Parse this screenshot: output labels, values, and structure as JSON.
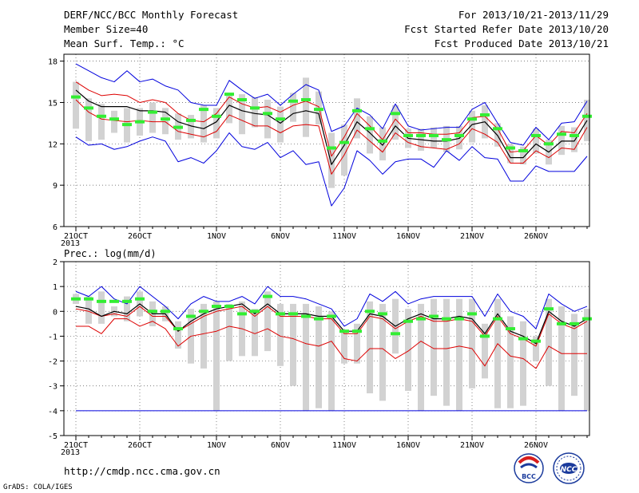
{
  "header": {
    "title": "DERF/NCC/BCC Monthly Forecast",
    "member_size": "Member Size=40",
    "variable": "Mean Surf. Temp.: °C",
    "period": "For 2013/10/21-2013/11/29",
    "fcst_started": "Fcst Started Refer Date 2013/10/20",
    "fcst_produced": "Fcst Produced Date 2013/10/21"
  },
  "footer": {
    "url": "http://cmdp.ncc.cma.gov.cn",
    "grads": "GrADS: COLA/IGES",
    "logo_bcc": "BCC",
    "logo_ncc": "NCC"
  },
  "colors": {
    "bar": "#d2d2d2",
    "obs": "#33ee33",
    "mean": "#000000",
    "spread": "#dd0000",
    "extreme": "#0000dd"
  },
  "chart_data": [
    {
      "type": "line",
      "name": "temperature",
      "ylabel": "",
      "ylim": [
        6,
        18.5
      ],
      "yticks": [
        6,
        9,
        12,
        15,
        18
      ],
      "grid": true,
      "xtick_labels": [
        {
          "day": 0,
          "label": "21OCT"
        },
        {
          "day": 5,
          "label": "26OCT"
        },
        {
          "day": 11,
          "label": "1NOV"
        },
        {
          "day": 16,
          "label": "6NOV"
        },
        {
          "day": 21,
          "label": "11NOV"
        },
        {
          "day": 26,
          "label": "16NOV"
        },
        {
          "day": 31,
          "label": "21NOV"
        },
        {
          "day": 36,
          "label": "26NOV"
        }
      ],
      "year_label": "2013",
      "series": {
        "max": [
          17.8,
          17.3,
          16.8,
          16.5,
          17.3,
          16.5,
          16.7,
          16.2,
          15.9,
          15.0,
          14.8,
          14.8,
          16.6,
          15.9,
          15.3,
          15.6,
          14.8,
          15.6,
          16.3,
          15.9,
          12.9,
          13.3,
          14.6,
          14.1,
          13.1,
          14.9,
          13.3,
          13.0,
          13.1,
          13.2,
          13.2,
          14.5,
          15.0,
          13.5,
          12.1,
          11.9,
          13.2,
          12.3,
          13.5,
          13.6,
          15.1
        ],
        "upper": [
          16.5,
          15.9,
          15.5,
          15.6,
          15.5,
          15.0,
          15.2,
          15.0,
          14.2,
          13.7,
          13.6,
          14.2,
          15.4,
          14.9,
          14.6,
          14.7,
          14.3,
          14.8,
          15.1,
          14.7,
          11.1,
          12.5,
          14.2,
          13.3,
          12.3,
          13.8,
          12.8,
          12.8,
          12.7,
          12.7,
          12.8,
          13.9,
          14.0,
          13.1,
          11.4,
          11.5,
          12.6,
          11.9,
          12.9,
          12.8,
          14.2
        ],
        "mean": [
          15.9,
          15.1,
          14.7,
          14.7,
          14.7,
          14.4,
          14.4,
          14.3,
          13.6,
          13.3,
          13.1,
          13.6,
          14.8,
          14.4,
          14.2,
          14.1,
          13.5,
          14.2,
          14.4,
          14.2,
          10.5,
          11.9,
          13.6,
          12.8,
          11.9,
          13.3,
          12.4,
          12.3,
          12.2,
          12.2,
          12.4,
          13.4,
          13.6,
          12.6,
          11.0,
          11.0,
          12.0,
          11.4,
          12.2,
          12.2,
          13.7
        ],
        "lower": [
          15.2,
          14.3,
          13.8,
          13.7,
          13.6,
          13.7,
          13.6,
          13.6,
          12.9,
          12.7,
          12.5,
          12.9,
          14.1,
          13.7,
          13.3,
          13.3,
          12.8,
          13.3,
          13.4,
          13.3,
          9.8,
          11.2,
          13.0,
          12.2,
          11.4,
          12.8,
          12.1,
          11.8,
          11.7,
          11.6,
          12.0,
          13.1,
          12.7,
          12.1,
          10.6,
          10.6,
          11.5,
          11.0,
          11.7,
          11.6,
          13.2
        ],
        "min": [
          12.5,
          11.9,
          12.0,
          11.6,
          11.8,
          12.2,
          12.5,
          12.2,
          10.7,
          11.0,
          10.6,
          11.5,
          12.8,
          11.8,
          11.6,
          12.1,
          11.0,
          11.5,
          10.5,
          10.7,
          7.5,
          8.8,
          11.5,
          10.8,
          9.8,
          10.7,
          10.9,
          10.9,
          10.3,
          11.5,
          10.8,
          11.8,
          11.0,
          10.9,
          9.3,
          9.3,
          10.4,
          10.0,
          10.0,
          10.0,
          11.1
        ],
        "obs": [
          15.4,
          14.6,
          14.0,
          13.8,
          13.4,
          13.6,
          14.3,
          13.8,
          13.2,
          13.7,
          14.5,
          14.0,
          15.6,
          15.2,
          14.6,
          14.2,
          13.8,
          15.1,
          15.2,
          14.5,
          11.7,
          12.1,
          14.4,
          13.1,
          12.2,
          14.2,
          12.6,
          12.6,
          12.6,
          12.3,
          12.6,
          13.8,
          14.1,
          13.1,
          11.7,
          11.5,
          12.6,
          12.0,
          12.7,
          12.6,
          14.0
        ]
      },
      "bars": {
        "top": [
          16.5,
          15.3,
          14.9,
          14.4,
          14.6,
          14.6,
          15.0,
          14.6,
          14.2,
          14.1,
          14.8,
          14.6,
          15.7,
          15.6,
          15.4,
          15.2,
          14.7,
          15.7,
          16.8,
          15.8,
          12.8,
          13.4,
          15.3,
          14.0,
          13.2,
          14.8,
          13.1,
          13.1,
          13.2,
          13.3,
          13.3,
          14.4,
          14.8,
          13.5,
          12.0,
          11.8,
          13.1,
          12.3,
          13.3,
          13.2,
          15.2
        ],
        "bottom": [
          13.1,
          12.2,
          12.3,
          12.8,
          12.1,
          12.6,
          12.8,
          12.7,
          12.3,
          12.4,
          12.1,
          12.4,
          13.5,
          12.7,
          13.2,
          12.4,
          12.1,
          13.6,
          12.5,
          13.4,
          8.8,
          9.7,
          12.4,
          11.3,
          10.8,
          12.3,
          11.7,
          11.5,
          11.7,
          11.4,
          11.6,
          12.1,
          12.4,
          11.8,
          10.6,
          10.5,
          11.3,
          10.5,
          11.2,
          11.4,
          12.2
        ]
      }
    },
    {
      "type": "line",
      "name": "precipitation",
      "ylabel": "Prec.: log(mm/d)",
      "ylim": [
        -5,
        2
      ],
      "yticks": [
        -5,
        -4,
        -3,
        -2,
        -1,
        0,
        1,
        2
      ],
      "grid": true,
      "xtick_labels": [
        {
          "day": 0,
          "label": "21OCT"
        },
        {
          "day": 5,
          "label": "26OCT"
        },
        {
          "day": 11,
          "label": "1NOV"
        },
        {
          "day": 16,
          "label": "6NOV"
        },
        {
          "day": 21,
          "label": "11NOV"
        },
        {
          "day": 26,
          "label": "16NOV"
        },
        {
          "day": 31,
          "label": "21NOV"
        },
        {
          "day": 36,
          "label": "26NOV"
        }
      ],
      "year_label": "2013",
      "series": {
        "max": [
          0.8,
          0.6,
          1.0,
          0.5,
          0.3,
          1.0,
          0.6,
          0.2,
          -0.3,
          0.3,
          0.6,
          0.4,
          0.4,
          0.6,
          0.3,
          1.0,
          0.6,
          0.6,
          0.5,
          0.3,
          0.1,
          -0.6,
          -0.3,
          0.7,
          0.4,
          0.8,
          0.3,
          0.5,
          0.6,
          0.6,
          0.6,
          0.6,
          -0.2,
          0.7,
          0.0,
          -0.2,
          -0.7,
          0.7,
          0.3,
          0.0,
          0.2
        ],
        "mean": [
          0.2,
          0.1,
          -0.2,
          0.0,
          -0.1,
          0.3,
          -0.1,
          -0.1,
          -0.8,
          -0.4,
          -0.1,
          0.1,
          0.2,
          0.3,
          -0.1,
          0.3,
          -0.1,
          -0.1,
          -0.1,
          -0.2,
          -0.2,
          -0.8,
          -0.8,
          -0.1,
          -0.2,
          -0.6,
          -0.3,
          -0.1,
          -0.3,
          -0.3,
          -0.2,
          -0.3,
          -0.9,
          -0.1,
          -0.8,
          -1.0,
          -1.3,
          0.0,
          -0.4,
          -0.6,
          -0.3
        ],
        "lower": [
          0.1,
          0.0,
          -0.2,
          -0.1,
          -0.2,
          0.2,
          -0.2,
          -0.2,
          -0.8,
          -0.5,
          -0.2,
          0.0,
          0.1,
          0.2,
          -0.2,
          0.2,
          -0.2,
          -0.2,
          -0.2,
          -0.3,
          -0.3,
          -0.9,
          -0.9,
          -0.2,
          -0.3,
          -0.7,
          -0.4,
          -0.2,
          -0.4,
          -0.4,
          -0.3,
          -0.4,
          -1.0,
          -0.2,
          -0.9,
          -1.1,
          -1.4,
          -0.1,
          -0.5,
          -0.7,
          -0.4
        ],
        "red": [
          -0.6,
          -0.6,
          -0.9,
          -0.3,
          -0.3,
          -0.6,
          -0.4,
          -0.7,
          -1.4,
          -1.0,
          -0.9,
          -0.8,
          -0.6,
          -0.7,
          -0.9,
          -0.7,
          -1.0,
          -1.1,
          -1.3,
          -1.4,
          -1.2,
          -1.9,
          -2.0,
          -1.5,
          -1.5,
          -1.9,
          -1.6,
          -1.2,
          -1.5,
          -1.5,
          -1.4,
          -1.5,
          -2.2,
          -1.3,
          -1.8,
          -1.9,
          -2.3,
          -1.4,
          -1.7,
          -1.7,
          -1.7
        ],
        "floor": [
          -4,
          -4,
          -4,
          -4,
          -4,
          -4,
          -4,
          -4,
          -4,
          -4,
          -4,
          -4,
          -4,
          -4,
          -4,
          -4,
          -4,
          -4,
          -4,
          -4,
          -4,
          -4,
          -4,
          -4,
          -4,
          -4,
          -4,
          -4,
          -4,
          -4,
          -4,
          -4,
          -4,
          -4,
          -4,
          -4,
          -4,
          -4,
          -4,
          -4,
          -4
        ],
        "obs": [
          0.5,
          0.5,
          0.4,
          0.4,
          0.4,
          0.5,
          0.0,
          0.0,
          -0.7,
          -0.2,
          0.0,
          0.2,
          0.2,
          -0.1,
          0.0,
          0.6,
          -0.1,
          -0.1,
          -0.2,
          -0.3,
          -0.2,
          -0.8,
          -0.8,
          0.0,
          -0.1,
          -0.9,
          -0.4,
          -0.3,
          -0.2,
          -0.3,
          -0.3,
          -0.1,
          -1.0,
          -0.3,
          -0.7,
          -1.1,
          -1.2,
          0.1,
          -0.5,
          -0.5,
          -0.3
        ]
      },
      "bars": {
        "top": [
          0.7,
          0.6,
          0.8,
          0.2,
          0.6,
          0.8,
          0.4,
          0.2,
          -0.4,
          0.1,
          0.3,
          0.4,
          0.3,
          0.4,
          0.1,
          0.8,
          0.3,
          0.3,
          0.3,
          0.2,
          0.0,
          -0.8,
          -0.5,
          0.4,
          0.3,
          0.5,
          0.1,
          0.3,
          0.5,
          0.5,
          0.5,
          0.5,
          -0.5,
          0.5,
          -0.2,
          -0.4,
          -1.0,
          0.5,
          0.2,
          -0.1,
          0.1
        ],
        "bottom": [
          0.3,
          -0.5,
          -0.5,
          -0.2,
          -0.4,
          -0.2,
          -0.6,
          -0.4,
          -1.5,
          -2.1,
          -2.3,
          -4.0,
          -2.0,
          -1.8,
          -1.8,
          -1.6,
          -2.2,
          -3.0,
          -4.0,
          -3.9,
          -4.0,
          -2.1,
          -2.1,
          -3.3,
          -3.6,
          -1.7,
          -3.2,
          -4.0,
          -3.4,
          -3.8,
          -4.0,
          -3.1,
          -2.7,
          -3.9,
          -3.9,
          -3.8,
          -2.0,
          -3.0,
          -4.0,
          -3.4,
          -4.0
        ]
      }
    }
  ]
}
